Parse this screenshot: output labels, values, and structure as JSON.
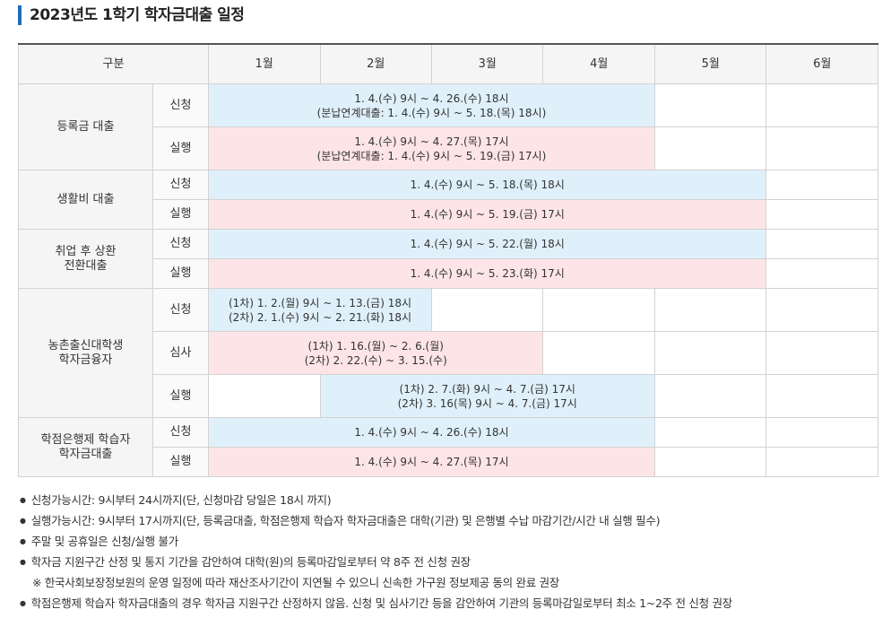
{
  "title": "2023년도 1학기 학자금대출 일정",
  "table": {
    "header": "구분",
    "months": [
      "1월",
      "2월",
      "3월",
      "4월",
      "5월",
      "6월"
    ],
    "groups": [
      {
        "label": [
          "등록금 대출"
        ],
        "rows": [
          {
            "type": "신청",
            "cells": [
              {
                "span": 4,
                "color": "blue",
                "lines": [
                  "1. 4.(수) 9시 ~ 4. 26.(수) 18시",
                  "(분납연계대출: 1. 4.(수) 9시 ~ 5. 18.(목) 18시)"
                ]
              },
              null,
              null
            ]
          },
          {
            "type": "실행",
            "cells": [
              {
                "span": 4,
                "color": "pink",
                "lines": [
                  "1. 4.(수) 9시 ~ 4. 27.(목) 17시",
                  "(분납연계대출: 1. 4.(수) 9시 ~ 5. 19.(금) 17시)"
                ]
              },
              null,
              null
            ]
          }
        ]
      },
      {
        "label": [
          "생활비 대출"
        ],
        "rows": [
          {
            "type": "신청",
            "cells": [
              {
                "span": 5,
                "color": "blue",
                "lines": [
                  "1. 4.(수) 9시 ~ 5. 18.(목) 18시"
                ]
              },
              null
            ]
          },
          {
            "type": "실행",
            "cells": [
              {
                "span": 5,
                "color": "pink",
                "lines": [
                  "1. 4.(수) 9시 ~ 5. 19.(금) 17시"
                ]
              },
              null
            ]
          }
        ]
      },
      {
        "label": [
          "취업 후 상환",
          "전환대출"
        ],
        "rows": [
          {
            "type": "신청",
            "cells": [
              {
                "span": 5,
                "color": "blue",
                "lines": [
                  "1. 4.(수) 9시 ~ 5. 22.(월) 18시"
                ]
              },
              null
            ]
          },
          {
            "type": "실행",
            "cells": [
              {
                "span": 5,
                "color": "pink",
                "lines": [
                  "1. 4.(수) 9시 ~ 5. 23.(화) 17시"
                ]
              },
              null
            ]
          }
        ]
      },
      {
        "label": [
          "농촌출신대학생",
          "학자금융자"
        ],
        "rows": [
          {
            "type": "신청",
            "cells": [
              {
                "span": 2,
                "color": "blue",
                "lines": [
                  "(1차) 1. 2.(월) 9시 ~ 1. 13.(금) 18시",
                  "(2차) 2. 1.(수) 9시 ~ 2. 21.(화) 18시"
                ]
              },
              null,
              null,
              null,
              null
            ]
          },
          {
            "type": "심사",
            "cells": [
              {
                "span": 3,
                "color": "pink",
                "lines": [
                  "(1차) 1. 16.(월) ~ 2. 6.(월)",
                  "(2차) 2. 22.(수) ~ 3. 15.(수)"
                ]
              },
              null,
              null,
              null
            ]
          },
          {
            "type": "실행",
            "cells": [
              null,
              {
                "span": 3,
                "color": "blue",
                "lines": [
                  "(1차) 2. 7.(화) 9시 ~ 4. 7.(금) 17시",
                  "(2차) 3. 16(목) 9시 ~ 4. 7.(금) 17시"
                ]
              },
              null,
              null
            ]
          }
        ]
      },
      {
        "label": [
          "학점은행제 학습자",
          "학자금대출"
        ],
        "rows": [
          {
            "type": "신청",
            "cells": [
              {
                "span": 4,
                "color": "blue",
                "lines": [
                  "1. 4.(수) 9시 ~ 4. 26.(수) 18시"
                ]
              },
              null,
              null
            ]
          },
          {
            "type": "실행",
            "cells": [
              {
                "span": 4,
                "color": "pink",
                "lines": [
                  "1. 4.(수) 9시 ~ 4. 27.(목) 17시"
                ]
              },
              null,
              null
            ]
          }
        ]
      }
    ]
  },
  "notes": [
    {
      "style": "bullet",
      "text": "신청가능시간: 9시부터 24시까지(단, 신청마감 당일은 18시 까지)"
    },
    {
      "style": "bullet",
      "text": "실행가능시간: 9시부터 17시까지(단, 등록금대출, 학점은행제 학습자 학자금대출은 대학(기관) 및 은행별 수납 마감기간/시간 내 실행 필수)"
    },
    {
      "style": "bullet",
      "text": "주말 및 공휴일은 신청/실행 불가"
    },
    {
      "style": "bullet",
      "text": "학자금 지원구간 산정 및 통지 기간을 감안하여 대학(원)의 등록마감일로부터 약 8주 전 신청 권장"
    },
    {
      "style": "sub",
      "text": "※ 한국사회보장정보원의 운영 일정에 따라 재산조사기간이 지연될 수 있으니 신속한 가구원 정보제공 동의 완료 권장"
    },
    {
      "style": "bullet",
      "text": "학점은행제 학습자 학자금대출의 경우 학자금 지원구간 산정하지 않음. 신청 및 심사기간 등을 감안하여 기관의 등록마감일로부터 최소 1~2주 전 신청 권장"
    }
  ]
}
